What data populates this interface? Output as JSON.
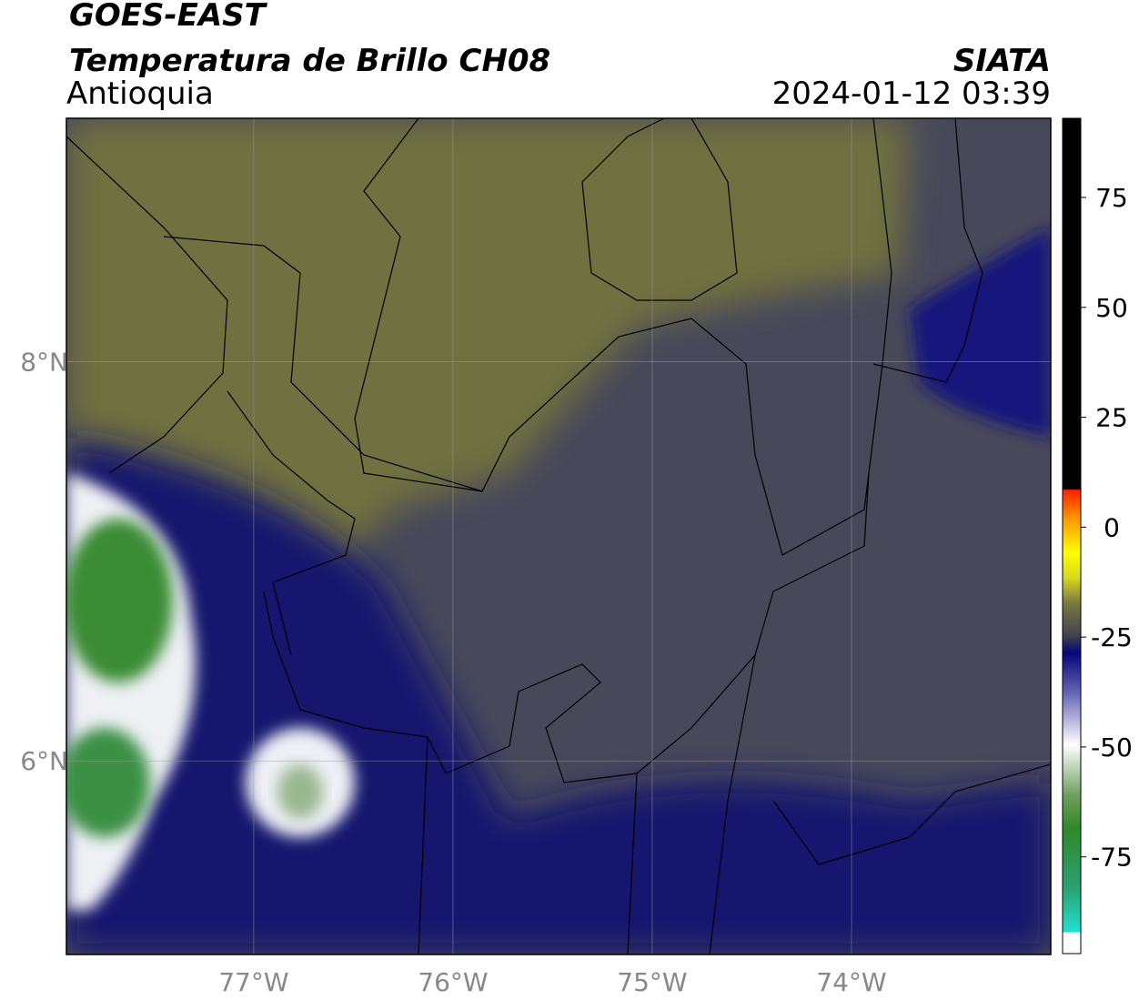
{
  "header": {
    "satellite": "GOES-EAST",
    "product": "Temperatura de Brillo CH08",
    "region": "Antioquia",
    "source": "SIATA",
    "datetime": "2024-01-12 03:39"
  },
  "map": {
    "xlim": [
      -77.94,
      -73.0
    ],
    "ylim": [
      5.03,
      9.22
    ],
    "xticks": [
      {
        "value": -77,
        "label": "77°W"
      },
      {
        "value": -76,
        "label": "76°W"
      },
      {
        "value": -75,
        "label": "75°W"
      },
      {
        "value": -74,
        "label": "74°W"
      }
    ],
    "yticks": [
      {
        "value": 8,
        "label": "8°N"
      },
      {
        "value": 6,
        "label": "6°N"
      }
    ],
    "grid": true
  },
  "colorbar": {
    "lim": [
      -97,
      93
    ],
    "ticks": [
      75,
      50,
      25,
      0,
      -25,
      -50,
      -75
    ]
  }
}
